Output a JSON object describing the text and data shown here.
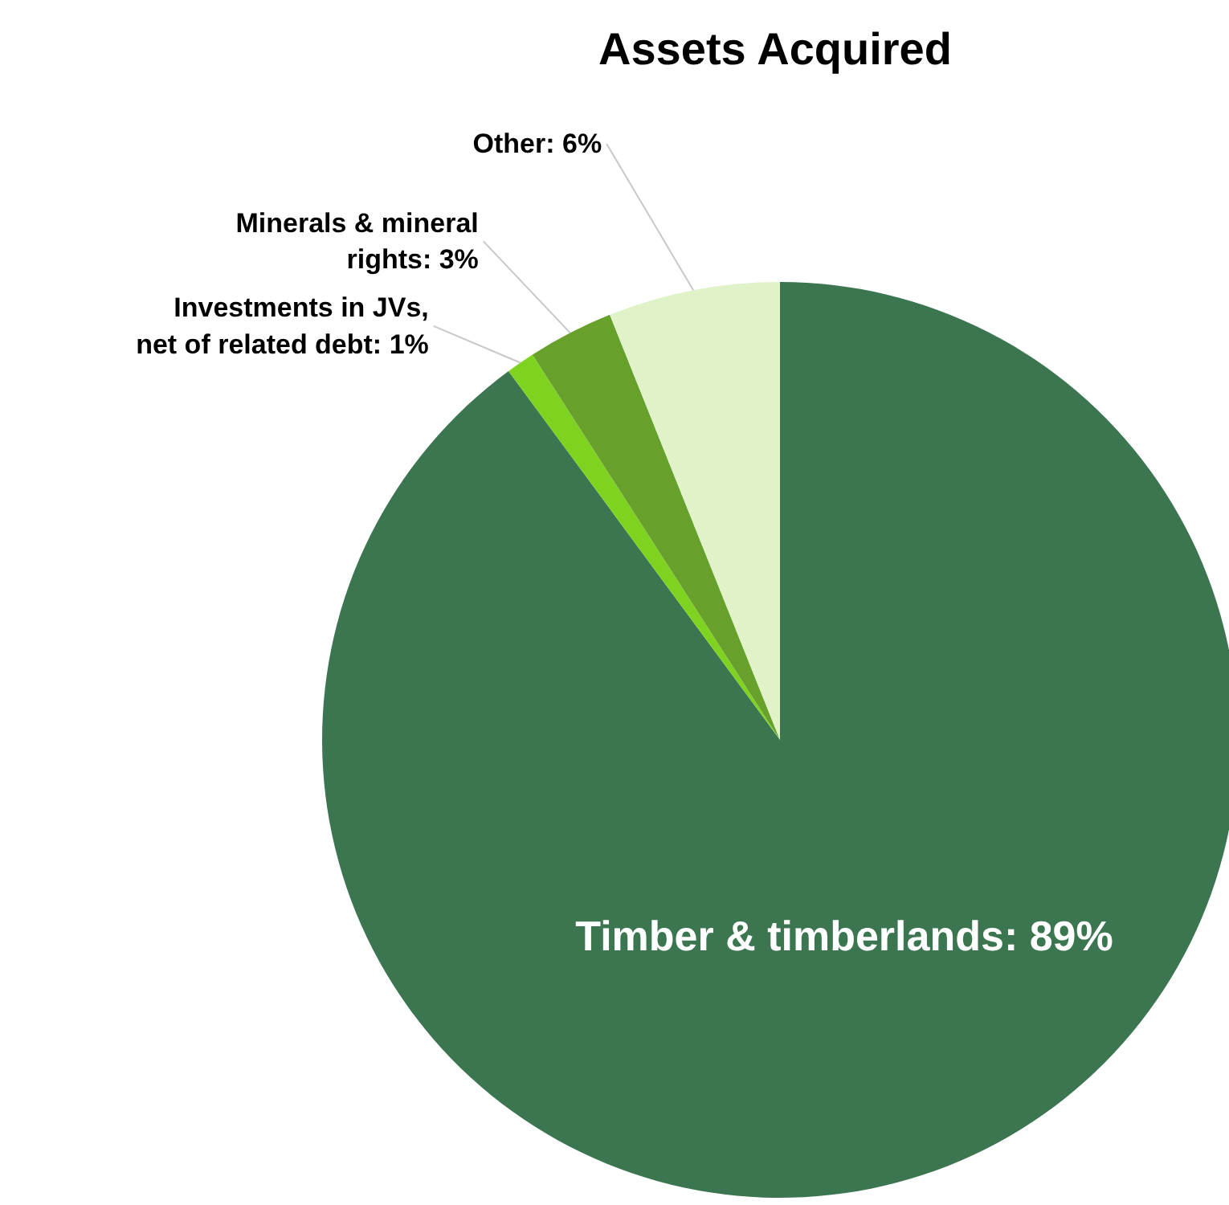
{
  "chart_data": {
    "type": "pie",
    "title": "Assets Acquired",
    "categories": [
      "Timber & timberlands",
      "Investments in JVs,\nnet of related debt",
      "Minerals & mineral\nrights",
      "Other"
    ],
    "values": [
      89,
      1,
      3,
      6
    ],
    "value_labels": [
      "89%",
      "1%",
      "3%",
      "6%"
    ],
    "colors": [
      "#3b7650",
      "#7ed321",
      "#68a02c",
      "#e0f2c8"
    ]
  }
}
